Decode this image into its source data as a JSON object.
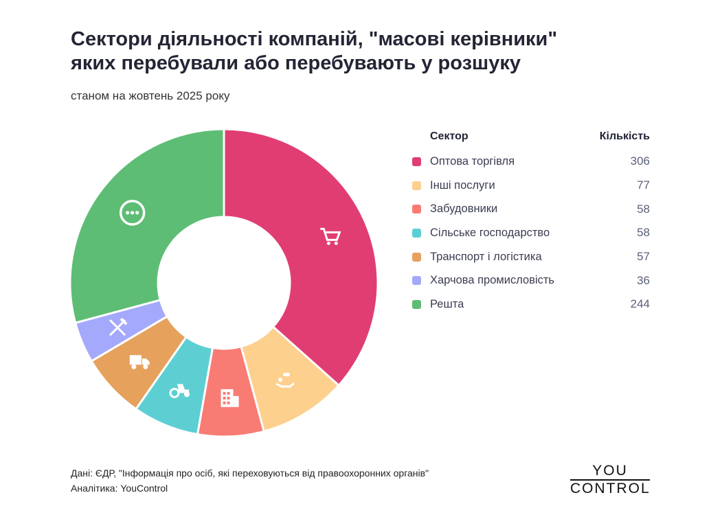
{
  "title_line1": "Сектори діяльності компаній, \"масові керівники\"",
  "title_line2": "яких перебували або перебувають у розшуку",
  "subtitle": "станом на жовтень 2025 року",
  "chart_data": {
    "type": "pie",
    "donut": true,
    "legend_header": {
      "sector": "Сектор",
      "count": "Кількість"
    },
    "legend_position": "right",
    "categories": [
      "Оптова торгівля",
      "Інші послуги",
      "Забудовники",
      "Сільське господарство",
      "Транспорт і логістика",
      "Харчова промисловість",
      "Решта"
    ],
    "values": [
      306,
      77,
      58,
      58,
      57,
      36,
      244
    ],
    "colors": [
      "#e03e72",
      "#fdd08e",
      "#f87c74",
      "#5dcfd3",
      "#e6a15d",
      "#a4a9fb",
      "#5dbd74"
    ],
    "icons": [
      "shopping-cart-icon",
      "service-hand-icon",
      "building-icon",
      "tractor-icon",
      "truck-icon",
      "fork-knife-icon",
      "more-dots-icon"
    ]
  },
  "footer": {
    "source": "Дані: ЄДР, \"Інформація про осіб, які переховуються від правоохоронних органів\"",
    "analytics": "Аналітика: YouControl"
  },
  "logo": {
    "line1": "YOU",
    "line2": "CONTROL"
  }
}
